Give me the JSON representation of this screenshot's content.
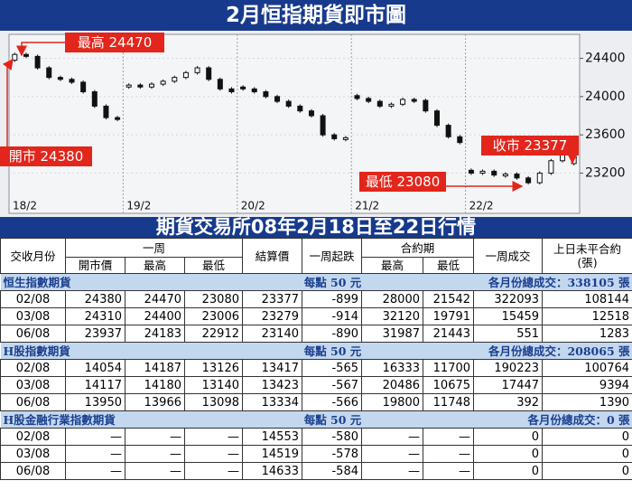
{
  "chart_data": {
    "type": "candlestick",
    "title": "2月恒指期貨即市圖",
    "categories": [
      "18/2",
      null,
      null,
      null,
      null,
      null,
      null,
      null,
      null,
      null,
      "19/2",
      null,
      null,
      null,
      null,
      null,
      null,
      null,
      null,
      null,
      "20/2",
      null,
      null,
      null,
      null,
      null,
      null,
      null,
      null,
      null,
      "21/2",
      null,
      null,
      null,
      null,
      null,
      null,
      null,
      null,
      null,
      "22/2",
      null,
      null,
      null,
      null,
      null,
      null,
      null,
      null,
      null
    ],
    "open": [
      24380,
      24440,
      24420,
      24300,
      24200,
      24180,
      24150,
      24050,
      23900,
      23780,
      24100,
      24120,
      24100,
      24130,
      24160,
      24200,
      24250,
      24300,
      24180,
      24080,
      24100,
      24080,
      24050,
      24000,
      23950,
      23900,
      23850,
      23800,
      23600,
      23560,
      24010,
      23980,
      23950,
      23900,
      23920,
      23970,
      23960,
      23850,
      23700,
      23580,
      23230,
      23200,
      23220,
      23180,
      23190,
      23150,
      23100,
      23200,
      23330,
      23300
    ],
    "close": [
      24440,
      24420,
      24300,
      24200,
      24180,
      24150,
      24050,
      23900,
      23780,
      23770,
      24120,
      24100,
      24130,
      24160,
      24200,
      24250,
      24300,
      24180,
      24080,
      24050,
      24080,
      24050,
      24000,
      23950,
      23900,
      23850,
      23800,
      23600,
      23560,
      23570,
      23980,
      23950,
      23900,
      23920,
      23970,
      23960,
      23850,
      23700,
      23580,
      23520,
      23200,
      23220,
      23180,
      23190,
      23150,
      23100,
      23200,
      23330,
      23400,
      23377
    ],
    "color": "#111111",
    "ylim": [
      22780,
      24650
    ],
    "yticks": [
      23200,
      23600,
      24000,
      24400
    ],
    "grid": true,
    "annotations": [
      {
        "text": "最高 24470"
      },
      {
        "text": "開市 24380"
      },
      {
        "text": "最低 23080"
      },
      {
        "text": "收市 23377"
      }
    ]
  },
  "table": {
    "title": "期貨交易所08年2月18日至22日行情",
    "header_top": [
      "交收月份",
      "一周",
      "結算價",
      "一周起跌",
      "合約期",
      "一周成交",
      "上日未平合約\n(張)"
    ],
    "header_sub": [
      "開市價",
      "最高",
      "最低",
      "最高",
      "最低"
    ],
    "sections": [
      {
        "title": "恒生指數期貨",
        "unit": "每點 50 元",
        "total": "各月份總成交：338105 張",
        "rows": [
          [
            "02/08",
            24380,
            24470,
            23080,
            23377,
            -899,
            28000,
            21542,
            322093,
            108144
          ],
          [
            "03/08",
            24310,
            24400,
            23006,
            23279,
            -914,
            32120,
            19791,
            15459,
            12518
          ],
          [
            "06/08",
            23937,
            24183,
            22912,
            23140,
            -890,
            31987,
            21443,
            551,
            1283
          ]
        ]
      },
      {
        "title": "H股指數期貨",
        "unit": "每點 50 元",
        "total": "各月份總成交：208065 張",
        "rows": [
          [
            "02/08",
            14054,
            14187,
            13126,
            13417,
            -565,
            16333,
            11700,
            190223,
            100764
          ],
          [
            "03/08",
            14117,
            14180,
            13140,
            13423,
            -567,
            20486,
            10675,
            17447,
            9394
          ],
          [
            "06/08",
            13950,
            13966,
            13098,
            13334,
            -566,
            19800,
            11748,
            392,
            1390
          ]
        ]
      },
      {
        "title": "H股金融行業指數期貨",
        "unit": "每點 50 元",
        "total": "各月份總成交：0 張",
        "rows": [
          [
            "02/08",
            "—",
            "—",
            "—",
            14553,
            -580,
            "—",
            "—",
            0,
            0
          ],
          [
            "03/08",
            "—",
            "—",
            "—",
            14519,
            -578,
            "—",
            "—",
            0,
            0
          ],
          [
            "06/08",
            "—",
            "—",
            "—",
            14633,
            -584,
            "—",
            "—",
            0,
            0
          ]
        ]
      }
    ]
  }
}
